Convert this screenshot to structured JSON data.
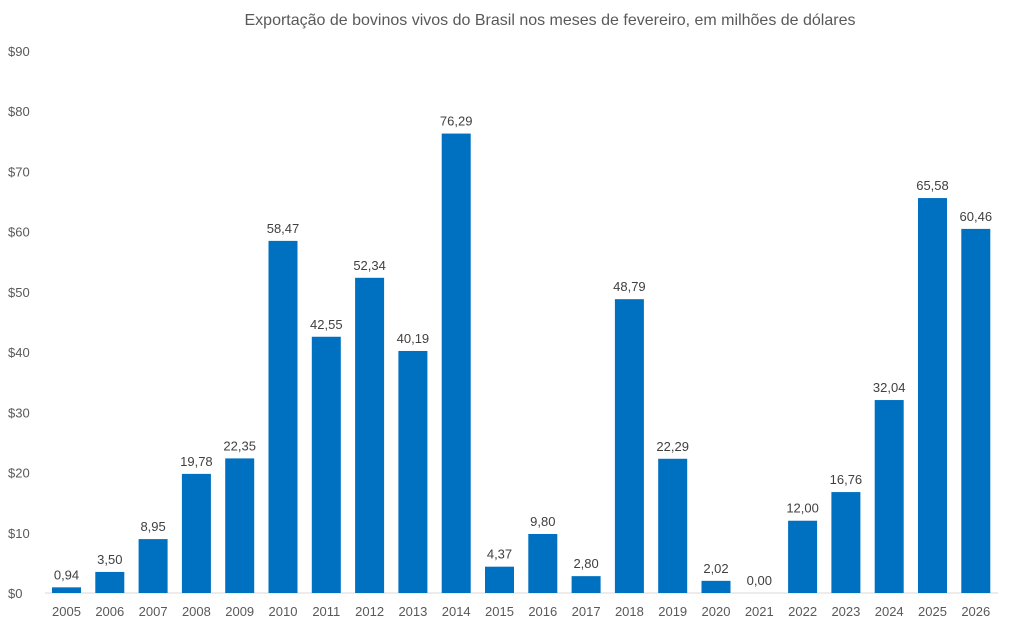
{
  "chart_data": {
    "type": "bar",
    "title": "Exportação de bovinos vivos do Brasil nos meses de fevereiro, em milhões de dólares",
    "xlabel": "",
    "ylabel": "",
    "ylim": [
      0,
      90
    ],
    "yticks": [
      "$0",
      "$10",
      "$20",
      "$30",
      "$40",
      "$50",
      "$60",
      "$70",
      "$80",
      "$90"
    ],
    "grid": false,
    "legend": "none",
    "bar_color": "#0070C0",
    "categories": [
      "2005",
      "2006",
      "2007",
      "2008",
      "2009",
      "2010",
      "2011",
      "2012",
      "2013",
      "2014",
      "2015",
      "2016",
      "2017",
      "2018",
      "2019",
      "2020",
      "2021",
      "2022",
      "2023",
      "2024",
      "2025",
      "2026"
    ],
    "values": [
      0.94,
      3.5,
      8.95,
      19.78,
      22.35,
      58.47,
      42.55,
      52.34,
      40.19,
      76.29,
      4.37,
      9.8,
      2.8,
      48.79,
      22.29,
      2.02,
      0.0,
      12.0,
      16.76,
      32.04,
      65.58,
      60.46
    ],
    "data_labels": [
      "0,94",
      "3,50",
      "8,95",
      "19,78",
      "22,35",
      "58,47",
      "42,55",
      "52,34",
      "40,19",
      "76,29",
      "4,37",
      "9,80",
      "2,80",
      "48,79",
      "22,29",
      "2,02",
      "0,00",
      "12,00",
      "16,76",
      "32,04",
      "65,58",
      "60,46"
    ]
  }
}
